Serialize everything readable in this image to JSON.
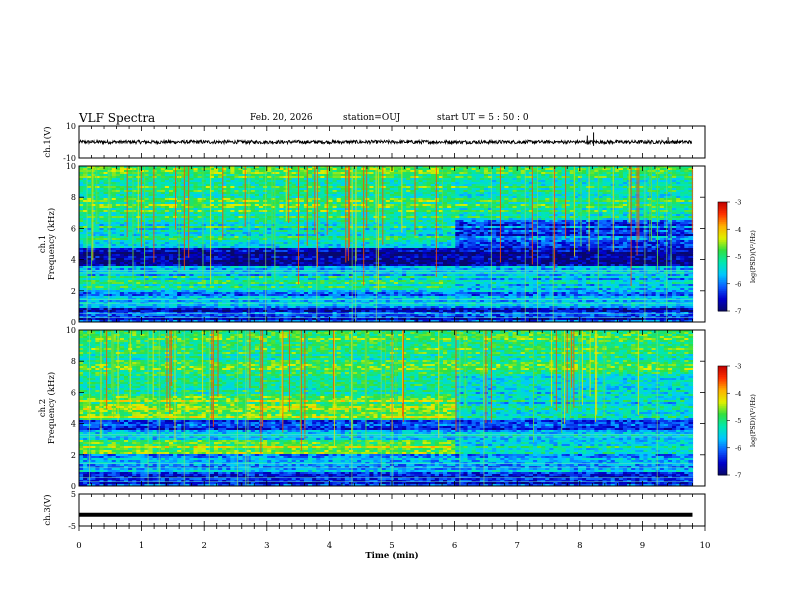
{
  "header": {
    "title": "VLF Spectra",
    "date": "Feb. 20, 2026",
    "station": "station=OUJ",
    "start": "start  UT =   5  : 50 : 0"
  },
  "chart_data": [
    {
      "type": "line",
      "name": "ch1-waveform",
      "ylabel": "ch.1(V)",
      "ylim": [
        -10,
        10
      ],
      "yticks": [
        "10",
        "-10"
      ],
      "baseline": 0,
      "spikes": [
        {
          "x": 8.12,
          "y": 4
        },
        {
          "x": 8.22,
          "y": 6
        },
        {
          "x": 9.41,
          "y": 3
        }
      ]
    },
    {
      "type": "heatmap",
      "name": "ch1-spectrogram",
      "ylabel": "ch.1",
      "ylabel2": "Frequency (kHz)",
      "ylim": [
        0,
        10
      ],
      "yticks": [
        "0",
        "2",
        "4",
        "6",
        "8",
        "10"
      ],
      "colorbar": {
        "label": "log(PSD)(V²/Hz)",
        "range": [
          -7,
          -3
        ],
        "ticks": [
          "-3",
          "-4",
          "-5",
          "-6",
          "-7"
        ]
      }
    },
    {
      "type": "heatmap",
      "name": "ch2-spectrogram",
      "ylabel": "ch.2",
      "ylabel2": "Frequency (kHz)",
      "ylim": [
        0,
        10
      ],
      "yticks": [
        "0",
        "2",
        "4",
        "6",
        "8",
        "10"
      ],
      "colorbar": {
        "label": "log(PSD)(V²/Hz)",
        "range": [
          -7,
          -3
        ],
        "ticks": [
          "-3",
          "-4",
          "-5",
          "-6",
          "-7"
        ]
      }
    },
    {
      "type": "line",
      "name": "ch3-waveform",
      "ylabel": "ch.3(V)",
      "ylim": [
        -5,
        5
      ],
      "yticks": [
        "5",
        "-5"
      ],
      "value": -1.5
    }
  ],
  "xaxis": {
    "label": "Time (min)",
    "range": [
      0,
      10
    ],
    "ticks": [
      "0",
      "1",
      "2",
      "3",
      "4",
      "5",
      "6",
      "7",
      "8",
      "9",
      "10"
    ],
    "data_end": 9.8
  },
  "colors": {
    "ink": "#000000",
    "spectro_stops": [
      "#08086a",
      "#0000cc",
      "#0a5cff",
      "#00c8ff",
      "#00e8b0",
      "#30e040",
      "#e0f000",
      "#ffb000",
      "#ff3000",
      "#c00000"
    ]
  }
}
